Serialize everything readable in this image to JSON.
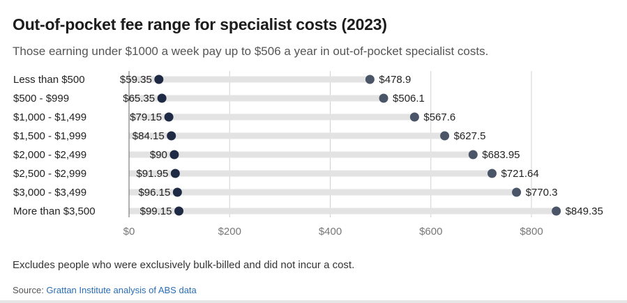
{
  "title": "Out-of-pocket fee range for specialist costs (2023)",
  "subtitle": "Those earning under $1000 a week pay up to $506 a year in out-of-pocket specialist costs.",
  "note": "Excludes people who were exclusively bulk-billed and did not incur a cost.",
  "source": {
    "prefix": "Source: ",
    "link_text": "Grattan Institute analysis of ABS data"
  },
  "colors": {
    "low_dot": "#1f2a44",
    "high_dot": "#4a5568",
    "track": "#e3e3e3",
    "grid": "#d0d0d0",
    "zero_line": "#666666",
    "tick_text": "#777777"
  },
  "chart_data": {
    "type": "dumbbell",
    "categories": [
      "Less than $500",
      "$500 - $999",
      "$1,000 - $1,499",
      "$1,500 - $1,999",
      "$2,000 - $2,499",
      "$2,500 - $2,999",
      "$3,000 - $3,499",
      "More than $3,500"
    ],
    "low_labels": [
      "$59.35",
      "$65.35",
      "$79.15",
      "$84.15",
      "$90",
      "$91.95",
      "$96.15",
      "$99.15"
    ],
    "high_labels": [
      "$478.9",
      "$506.1",
      "$567.6",
      "$627.5",
      "$683.95",
      "$721.64",
      "$770.3",
      "$849.35"
    ],
    "series": [
      {
        "values": [
          59.35,
          65.35,
          79.15,
          84.15,
          90,
          91.95,
          96.15,
          99.15
        ]
      },
      {
        "values": [
          478.9,
          506.1,
          567.6,
          627.5,
          683.95,
          721.64,
          770.3,
          849.35
        ]
      }
    ],
    "xlim": [
      0,
      900
    ],
    "xticks": [
      0,
      200,
      400,
      600,
      800
    ],
    "xtick_labels": [
      "$0",
      "$200",
      "$400",
      "$600",
      "$800"
    ],
    "grid": true
  }
}
